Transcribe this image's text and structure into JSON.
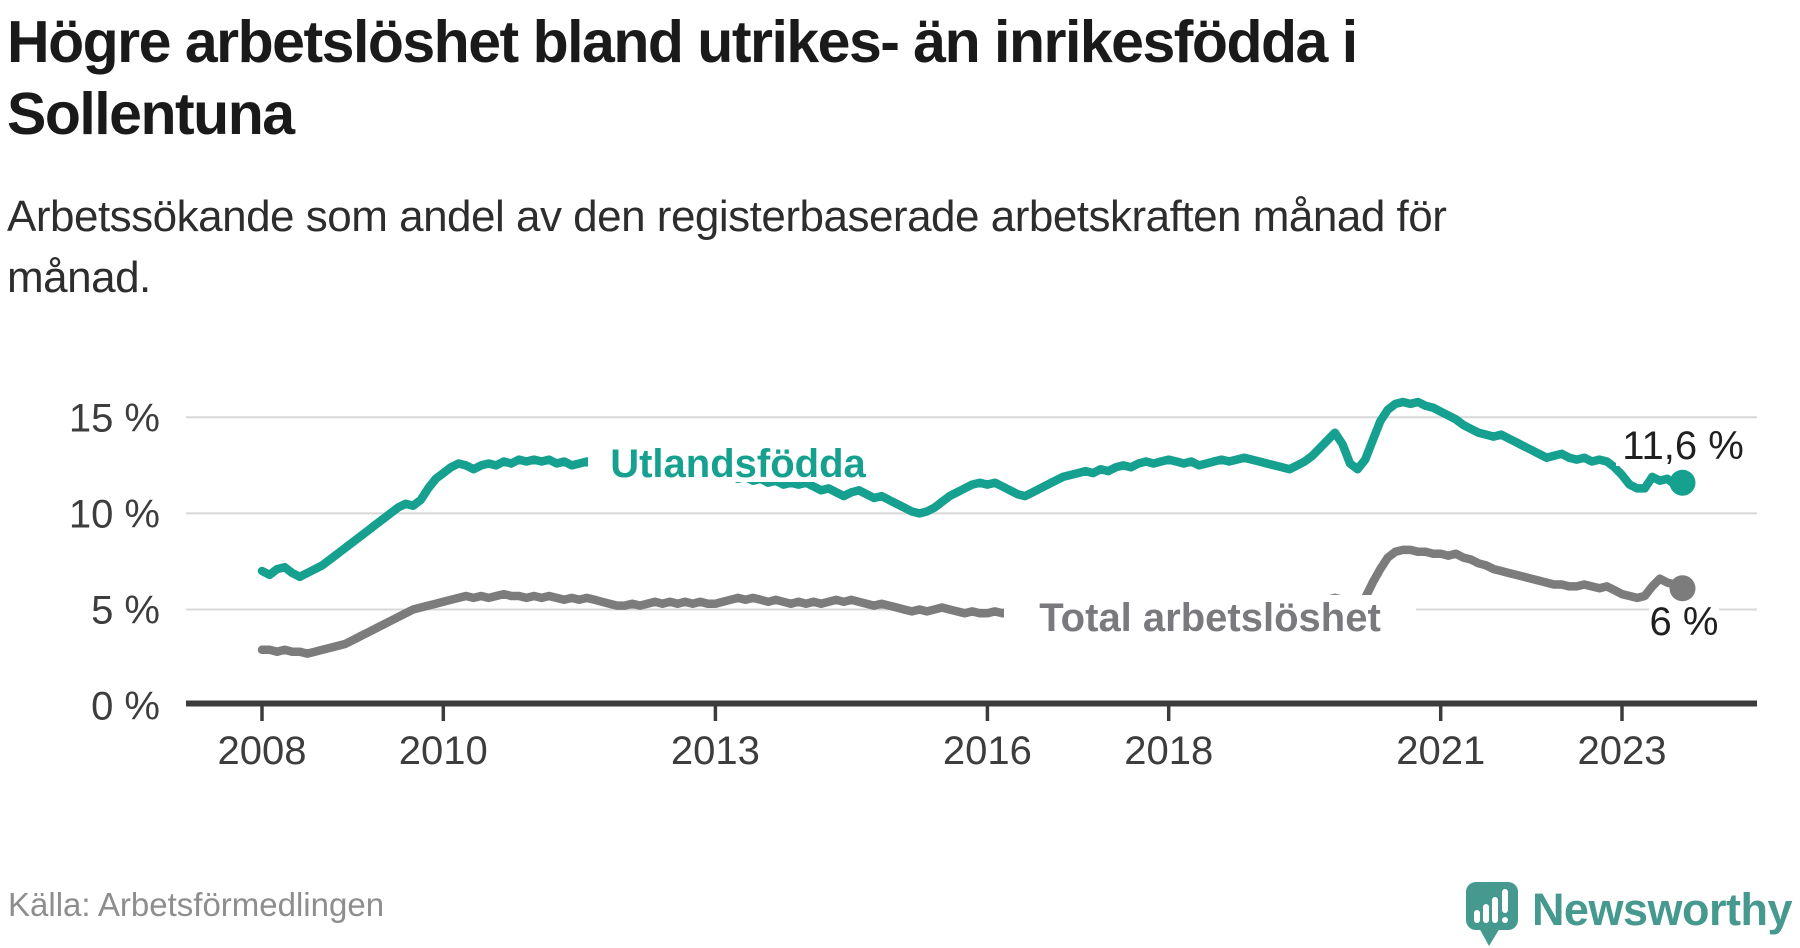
{
  "header": {
    "title_line1": "Högre arbetslöshet bland utrikes- än inrikesfödda i",
    "title_line2": "Sollentuna",
    "subtitle_line1": "Arbetssökande som andel av den registerbaserade arbetskraften månad för",
    "subtitle_line2": "månad."
  },
  "footer": {
    "source": "Källa: Arbetsförmedlingen",
    "brand": "Newsworthy"
  },
  "colors": {
    "accent_teal": "#16a08f",
    "series_gray": "#7c7c7c",
    "logo_teal": "#45998f",
    "gridline": "#d8d8d8",
    "axis": "#3c3c3c"
  },
  "chart_data": {
    "type": "line",
    "title": "Högre arbetslöshet bland utrikes- än inrikesfödda i Sollentuna",
    "subtitle": "Arbetssökande som andel av den registerbaserade arbetskraften månad för månad.",
    "unit": "%",
    "frequency": "monthly",
    "x_start": "2008-01",
    "x_end": "2023-09",
    "xlabel": "",
    "ylabel": "",
    "ylim": [
      0,
      16.6
    ],
    "grid": true,
    "x_ticks": [
      2008,
      2010,
      2013,
      2016,
      2018,
      2021,
      2023
    ],
    "y_ticks": [
      {
        "value": 0,
        "label": "0 %"
      },
      {
        "value": 5,
        "label": "5 %"
      },
      {
        "value": 10,
        "label": "10 %"
      },
      {
        "value": 15,
        "label": "15 %"
      }
    ],
    "series": [
      {
        "name": "Utlandsfödda",
        "color": "#16a08f",
        "end_label": "11,6 %",
        "end_value": 11.6,
        "values": [
          7.0,
          6.8,
          7.1,
          7.2,
          6.9,
          6.7,
          6.9,
          7.1,
          7.3,
          7.6,
          7.9,
          8.2,
          8.5,
          8.8,
          9.1,
          9.4,
          9.7,
          10.0,
          10.3,
          10.5,
          10.4,
          10.7,
          11.3,
          11.8,
          12.1,
          12.4,
          12.6,
          12.5,
          12.3,
          12.5,
          12.6,
          12.5,
          12.7,
          12.6,
          12.8,
          12.7,
          12.8,
          12.7,
          12.8,
          12.6,
          12.7,
          12.5,
          12.6,
          12.7,
          12.5,
          12.6,
          12.5,
          12.6,
          12.4,
          12.5,
          12.3,
          12.4,
          12.5,
          12.3,
          12.4,
          12.2,
          12.3,
          12.1,
          12.2,
          12.0,
          12.1,
          11.9,
          12.0,
          11.8,
          11.9,
          11.7,
          11.8,
          11.6,
          11.7,
          11.5,
          11.6,
          11.5,
          11.6,
          11.4,
          11.2,
          11.3,
          11.1,
          10.9,
          11.1,
          11.2,
          11.0,
          10.8,
          10.9,
          10.7,
          10.5,
          10.3,
          10.1,
          10.0,
          10.1,
          10.3,
          10.6,
          10.9,
          11.1,
          11.3,
          11.5,
          11.6,
          11.5,
          11.6,
          11.4,
          11.2,
          11.0,
          10.9,
          11.1,
          11.3,
          11.5,
          11.7,
          11.9,
          12.0,
          12.1,
          12.2,
          12.1,
          12.3,
          12.2,
          12.4,
          12.5,
          12.4,
          12.6,
          12.7,
          12.6,
          12.7,
          12.8,
          12.7,
          12.6,
          12.7,
          12.5,
          12.6,
          12.7,
          12.8,
          12.7,
          12.8,
          12.9,
          12.8,
          12.7,
          12.6,
          12.5,
          12.4,
          12.3,
          12.5,
          12.7,
          13.0,
          13.4,
          13.8,
          14.2,
          13.6,
          12.6,
          12.3,
          12.8,
          13.8,
          14.8,
          15.4,
          15.7,
          15.8,
          15.7,
          15.8,
          15.6,
          15.5,
          15.3,
          15.1,
          14.9,
          14.6,
          14.4,
          14.2,
          14.1,
          14.0,
          14.1,
          13.9,
          13.7,
          13.5,
          13.3,
          13.1,
          12.9,
          13.0,
          13.1,
          12.9,
          12.8,
          12.9,
          12.7,
          12.8,
          12.7,
          12.4,
          12.0,
          11.5,
          11.3,
          11.3,
          11.9,
          11.7,
          11.8,
          11.5,
          11.6
        ]
      },
      {
        "name": "Total arbetslöshet",
        "color": "#7c7c7c",
        "end_label": "6 %",
        "end_value": 6.1,
        "values": [
          2.9,
          2.9,
          2.8,
          2.9,
          2.8,
          2.8,
          2.7,
          2.8,
          2.9,
          3.0,
          3.1,
          3.2,
          3.4,
          3.6,
          3.8,
          4.0,
          4.2,
          4.4,
          4.6,
          4.8,
          5.0,
          5.1,
          5.2,
          5.3,
          5.4,
          5.5,
          5.6,
          5.7,
          5.6,
          5.7,
          5.6,
          5.7,
          5.8,
          5.7,
          5.7,
          5.6,
          5.7,
          5.6,
          5.7,
          5.6,
          5.5,
          5.6,
          5.5,
          5.6,
          5.5,
          5.4,
          5.3,
          5.2,
          5.2,
          5.3,
          5.2,
          5.3,
          5.4,
          5.3,
          5.4,
          5.3,
          5.4,
          5.3,
          5.4,
          5.3,
          5.3,
          5.4,
          5.5,
          5.6,
          5.5,
          5.6,
          5.5,
          5.4,
          5.5,
          5.4,
          5.3,
          5.4,
          5.3,
          5.4,
          5.3,
          5.4,
          5.5,
          5.4,
          5.5,
          5.4,
          5.3,
          5.2,
          5.3,
          5.2,
          5.1,
          5.0,
          4.9,
          5.0,
          4.9,
          5.0,
          5.1,
          5.0,
          4.9,
          4.8,
          4.9,
          4.8,
          4.8,
          4.9,
          4.8,
          4.9,
          4.8,
          4.7,
          4.8,
          4.9,
          4.8,
          4.7,
          4.8,
          4.7,
          4.8,
          4.7,
          4.8,
          4.9,
          4.8,
          4.9,
          4.8,
          4.9,
          5.0,
          4.9,
          5.0,
          4.9,
          5.0,
          4.9,
          5.0,
          4.9,
          5.0,
          5.1,
          5.0,
          5.1,
          5.0,
          5.1,
          5.2,
          5.1,
          5.0,
          5.1,
          5.0,
          5.1,
          5.2,
          5.1,
          5.2,
          5.3,
          5.4,
          5.5,
          5.6,
          5.5,
          5.3,
          5.2,
          5.6,
          6.4,
          7.1,
          7.7,
          8.0,
          8.1,
          8.1,
          8.0,
          8.0,
          7.9,
          7.9,
          7.8,
          7.9,
          7.7,
          7.6,
          7.4,
          7.3,
          7.1,
          7.0,
          6.9,
          6.8,
          6.7,
          6.6,
          6.5,
          6.4,
          6.3,
          6.3,
          6.2,
          6.2,
          6.3,
          6.2,
          6.1,
          6.2,
          6.0,
          5.8,
          5.7,
          5.6,
          5.7,
          6.2,
          6.6,
          6.4,
          6.3,
          6.1
        ]
      }
    ],
    "legend_position": "inline-labels"
  }
}
